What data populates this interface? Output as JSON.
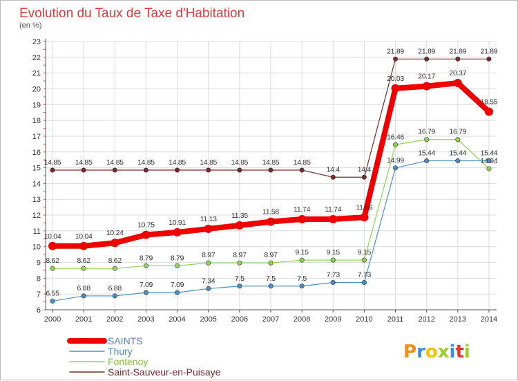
{
  "title": "Evolution du Taux de Taxe d'Habitation",
  "subtitle": "(en %)",
  "logo": {
    "letters": [
      "P",
      "r",
      "o",
      "x",
      "i",
      "t",
      "i"
    ],
    "colors": [
      "#f28c1c",
      "#3a8fd8",
      "#f2c200",
      "#9acd32",
      "#3a8fd8",
      "#e53838",
      "#9acd32"
    ]
  },
  "chart_data": {
    "type": "line",
    "x": [
      "2000",
      "2001",
      "2002",
      "2003",
      "2004",
      "2005",
      "2006",
      "2007",
      "2008",
      "2009",
      "2010",
      "2011",
      "2012",
      "2013",
      "2014"
    ],
    "ylim": [
      6,
      23
    ],
    "yticks": [
      "6",
      "7",
      "8",
      "9",
      "10",
      "11",
      "12",
      "13",
      "14",
      "15",
      "16",
      "17",
      "18",
      "19",
      "20",
      "21",
      "22",
      "23"
    ],
    "grid": true,
    "legend_position": "bottom-left",
    "series": [
      {
        "name": "Saint-Sauveur-en-Puisaye",
        "color": "#7a2a2a",
        "values": [
          14.85,
          14.85,
          14.85,
          14.85,
          14.85,
          14.85,
          14.85,
          14.85,
          14.85,
          14.4,
          14.4,
          21.89,
          21.89,
          21.89,
          21.89
        ],
        "labels": [
          "14.85",
          "14.85",
          "14.85",
          "14.85",
          "14.85",
          "14.85",
          "14.85",
          "14.85",
          "14.85",
          "14.4",
          "14.4",
          "21.89",
          "21.89",
          "21.89",
          "21.89"
        ]
      },
      {
        "name": "Fontenoy",
        "color": "#8fd454",
        "values": [
          8.62,
          8.62,
          8.62,
          8.79,
          8.79,
          8.97,
          8.97,
          8.97,
          9.15,
          9.15,
          9.15,
          16.46,
          16.79,
          16.79,
          14.94
        ],
        "labels": [
          "8.62",
          "8.62",
          "8.62",
          "8.79",
          "8.79",
          "8.97",
          "8.97",
          "8.97",
          "9.15",
          "9.15",
          "9.15",
          "16.46",
          "16.79",
          "16.79",
          "14.94"
        ]
      },
      {
        "name": "Thury",
        "color": "#4a8fc4",
        "values": [
          6.55,
          6.88,
          6.88,
          7.09,
          7.09,
          7.34,
          7.5,
          7.5,
          7.5,
          7.73,
          7.73,
          14.99,
          15.44,
          15.44,
          15.44
        ],
        "labels": [
          "6.55",
          "6.88",
          "6.88",
          "7.09",
          "7.09",
          "7.34",
          "7.5",
          "7.5",
          "7.5",
          "7.73",
          "7.73",
          "14.99",
          "15.44",
          "15.44",
          "15.44"
        ]
      },
      {
        "name": "SAINTS",
        "color": "#ee0000",
        "values": [
          10.04,
          10.04,
          10.24,
          10.75,
          10.91,
          11.13,
          11.35,
          11.58,
          11.74,
          11.74,
          11.86,
          20.03,
          20.17,
          20.37,
          18.55
        ],
        "labels": [
          "10.04",
          "10.04",
          "10.24",
          "10.75",
          "10.91",
          "11.13",
          "11.35",
          "11.58",
          "11.74",
          "11.74",
          "11.86",
          "20.03",
          "20.17",
          "20.37",
          "18.55"
        ]
      }
    ],
    "legend_order": [
      "SAINTS",
      "Thury",
      "Fontenoy",
      "Saint-Sauveur-en-Puisaye"
    ]
  }
}
